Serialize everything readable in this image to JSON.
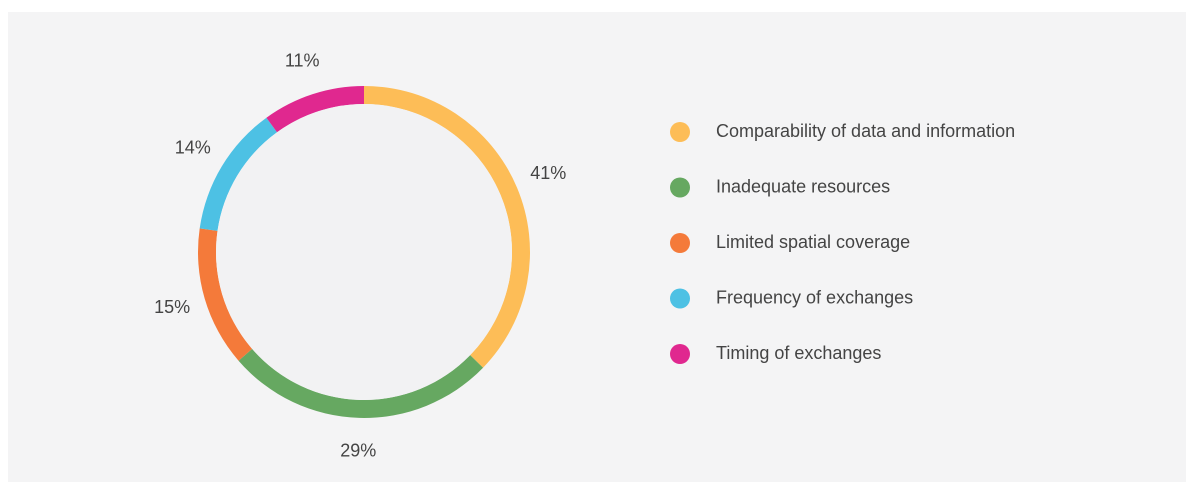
{
  "chart_data": {
    "type": "pie",
    "donut": true,
    "categories": [
      "Comparability of data and information",
      "Inadequate resources",
      "Limited spatial coverage",
      "Frequency of exchanges",
      "Timing of exchanges"
    ],
    "values": [
      41,
      29,
      15,
      14,
      11
    ],
    "value_labels": [
      "41%",
      "29%",
      "15%",
      "14%",
      "11%"
    ],
    "colors": [
      "#fdbd57",
      "#66a861",
      "#f47a3a",
      "#4dc1e4",
      "#e0288f"
    ],
    "legend": "right"
  }
}
